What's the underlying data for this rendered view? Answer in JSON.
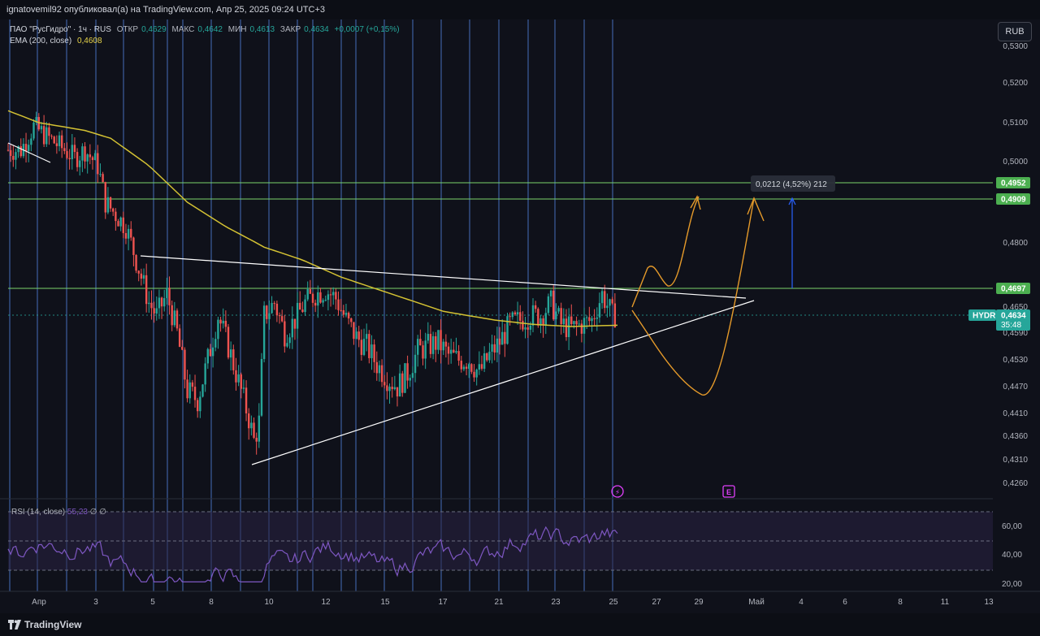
{
  "header": {
    "publish_line": "ignatovemil92 опубликовал(а) на TradingView.com, Апр 25, 2025 09:24 UTC+3"
  },
  "legend": {
    "symbol_line": "ПАО \"РусГидро\" · 1ч · RUS",
    "open_label": "ОТКР",
    "open_value": "0,4629",
    "high_label": "МАКС",
    "high_value": "0,4642",
    "low_label": "МИН",
    "low_value": "0,4613",
    "close_label": "ЗАКР",
    "close_value": "0,4634",
    "change_value": "+0,0007 (+0,15%)",
    "ema_label": "EMA (200, close)",
    "ema_value": "0,4608"
  },
  "currency": "RUB",
  "rsi_legend": {
    "label": "RSI (14, close)",
    "value": "55,23",
    "extra1": "∅",
    "extra2": "∅"
  },
  "ticker": {
    "symbol": "HYDR",
    "price": "0,4634",
    "countdown": "35:48"
  },
  "levels": [
    {
      "value": 0.4952,
      "label": "0,4952"
    },
    {
      "value": 0.4909,
      "label": "0,4909"
    },
    {
      "value": 0.4697,
      "label": "0,4697"
    }
  ],
  "measure": {
    "text": "0,0212 (4,52%) 212"
  },
  "footer": {
    "brand": "TradingView"
  },
  "colors": {
    "background": "#0f111a",
    "bull": "#26a69a",
    "bear": "#ef5350",
    "ema": "#d4c233",
    "levels": "#7bd36b",
    "level_tag": "#4caf50",
    "vertical_lines": "#4f7ed8",
    "trend_lines": "#ffffff",
    "projection": "#e59a2a",
    "rsi": "#7e57c2",
    "ticker_tag": "#26a69a"
  },
  "chart_data": {
    "type": "candlestick",
    "symbol": "HYDR",
    "interval": "1ч",
    "currency": "RUB",
    "y_ticks": [
      "0,5300",
      "0,5200",
      "0,5100",
      "0,5000",
      "0,4800",
      "0,4650",
      "0,4590",
      "0,4530",
      "0,4470",
      "0,4410",
      "0,4360",
      "0,4310",
      "0,4260"
    ],
    "y_tick_values": [
      0.53,
      0.52,
      0.51,
      0.5,
      0.48,
      0.465,
      0.459,
      0.453,
      0.447,
      0.441,
      0.436,
      0.431,
      0.426
    ],
    "x_ticks": [
      "Апр",
      "3",
      "5",
      "8",
      "10",
      "12",
      "15",
      "17",
      "21",
      "23",
      "25",
      "27",
      "29",
      "Май",
      "4",
      "6",
      "8",
      "11",
      "13"
    ],
    "price_range": [
      0.423,
      0.533
    ],
    "candles_count": 238,
    "price_path": [
      [
        0,
        0.503
      ],
      [
        5,
        0.503
      ],
      [
        10,
        0.509
      ],
      [
        14,
        0.507
      ],
      [
        18,
        0.505
      ],
      [
        22,
        0.503
      ],
      [
        26,
        0.501
      ],
      [
        30,
        0.503
      ],
      [
        35,
        0.499
      ],
      [
        38,
        0.49
      ],
      [
        42,
        0.487
      ],
      [
        46,
        0.484
      ],
      [
        50,
        0.476
      ],
      [
        55,
        0.466
      ],
      [
        58,
        0.463
      ],
      [
        62,
        0.468
      ],
      [
        66,
        0.459
      ],
      [
        70,
        0.446
      ],
      [
        74,
        0.444
      ],
      [
        78,
        0.453
      ],
      [
        82,
        0.463
      ],
      [
        86,
        0.456
      ],
      [
        90,
        0.448
      ],
      [
        94,
        0.44
      ],
      [
        96,
        0.435
      ],
      [
        98,
        0.439
      ],
      [
        100,
        0.463
      ],
      [
        104,
        0.466
      ],
      [
        108,
        0.459
      ],
      [
        112,
        0.462
      ],
      [
        116,
        0.466
      ],
      [
        120,
        0.468
      ],
      [
        124,
        0.469
      ],
      [
        128,
        0.467
      ],
      [
        132,
        0.462
      ],
      [
        136,
        0.458
      ],
      [
        140,
        0.456
      ],
      [
        144,
        0.452
      ],
      [
        148,
        0.449
      ],
      [
        152,
        0.447
      ],
      [
        156,
        0.45
      ],
      [
        160,
        0.455
      ],
      [
        164,
        0.456
      ],
      [
        168,
        0.457
      ],
      [
        172,
        0.454
      ],
      [
        176,
        0.453
      ],
      [
        180,
        0.453
      ],
      [
        184,
        0.45
      ],
      [
        188,
        0.454
      ],
      [
        192,
        0.457
      ],
      [
        196,
        0.461
      ],
      [
        200,
        0.462
      ],
      [
        204,
        0.463
      ],
      [
        208,
        0.463
      ],
      [
        212,
        0.466
      ],
      [
        216,
        0.461
      ],
      [
        220,
        0.46
      ],
      [
        224,
        0.461
      ],
      [
        228,
        0.462
      ],
      [
        232,
        0.468
      ],
      [
        236,
        0.463
      ],
      [
        238,
        0.4634
      ]
    ],
    "ema200_path": [
      [
        0,
        0.513
      ],
      [
        12,
        0.51
      ],
      [
        30,
        0.508
      ],
      [
        40,
        0.506
      ],
      [
        55,
        0.499
      ],
      [
        70,
        0.49
      ],
      [
        85,
        0.484
      ],
      [
        100,
        0.479
      ],
      [
        115,
        0.476
      ],
      [
        130,
        0.472
      ],
      [
        150,
        0.468
      ],
      [
        170,
        0.464
      ],
      [
        190,
        0.462
      ],
      [
        205,
        0.461
      ],
      [
        220,
        0.4605
      ],
      [
        238,
        0.4608
      ]
    ],
    "rsi": {
      "ticks": [
        "60,00",
        "40,00",
        "20,00"
      ],
      "tick_values": [
        60,
        40,
        20
      ],
      "bands": [
        70,
        50,
        30
      ],
      "last": 55.23
    },
    "annotations": {
      "levels": [
        0.4952,
        0.4909,
        0.4697
      ],
      "measure_from": 0.4697,
      "measure_to": 0.4909,
      "measure_text": "0,0212 (4,52%) 212",
      "events": [
        "⚡",
        "E"
      ]
    }
  }
}
